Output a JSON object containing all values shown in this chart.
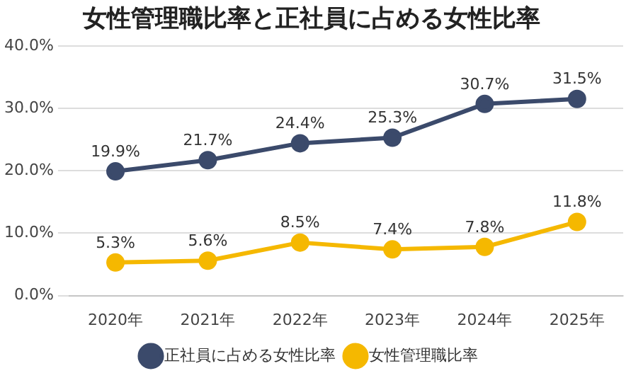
{
  "chart_data": {
    "type": "line",
    "title": "女性管理職比率と正社員に占める女性比率",
    "categories": [
      "2020年",
      "2021年",
      "2022年",
      "2023年",
      "2024年",
      "2025年"
    ],
    "series": [
      {
        "name": "正社員に占める女性比率",
        "color": "#3b4a6b",
        "values": [
          19.9,
          21.7,
          24.4,
          25.3,
          30.7,
          31.5
        ],
        "value_labels": [
          "19.9%",
          "21.7%",
          "24.4%",
          "25.3%",
          "30.7%",
          "31.5%"
        ]
      },
      {
        "name": "女性管理職比率",
        "color": "#f5b800",
        "values": [
          5.3,
          5.6,
          8.5,
          7.4,
          7.8,
          11.8
        ],
        "value_labels": [
          "5.3%",
          "5.6%",
          "8.5%",
          "7.4%",
          "7.8%",
          "11.8%"
        ]
      }
    ],
    "ylim": [
      0,
      40
    ],
    "yticks": [
      {
        "value": 0,
        "label": "0.0%"
      },
      {
        "value": 10,
        "label": "10.0%"
      },
      {
        "value": 20,
        "label": "20.0%"
      },
      {
        "value": 30,
        "label": "30.0%"
      },
      {
        "value": 40,
        "label": "40.0%"
      }
    ],
    "grid": "y",
    "legend": "bottom",
    "marker": "circle",
    "line_style": "solid"
  }
}
